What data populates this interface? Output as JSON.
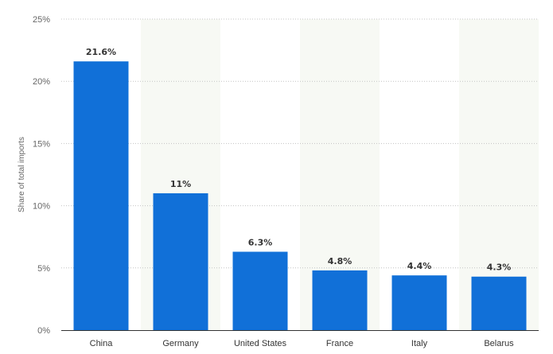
{
  "chart_data": {
    "type": "bar",
    "categories": [
      "China",
      "Germany",
      "United States",
      "France",
      "Italy",
      "Belarus"
    ],
    "values": [
      21.6,
      11,
      6.3,
      4.8,
      4.4,
      4.3
    ],
    "value_labels": [
      "21.6%",
      "11%",
      "6.3%",
      "4.8%",
      "4.4%",
      "4.3%"
    ],
    "title": "",
    "xlabel": "",
    "ylabel": "Share of total imports",
    "ylim": [
      0,
      25
    ],
    "yticks": [
      0,
      5,
      10,
      15,
      20,
      25
    ],
    "ytick_labels": [
      "0%",
      "5%",
      "10%",
      "15%",
      "20%",
      "25%"
    ],
    "grid": true,
    "legend": "none",
    "colors": {
      "bar": "#1170d8",
      "band": "#f7f9f4",
      "grid": "#c4c4c4",
      "axis": "#333333"
    }
  }
}
